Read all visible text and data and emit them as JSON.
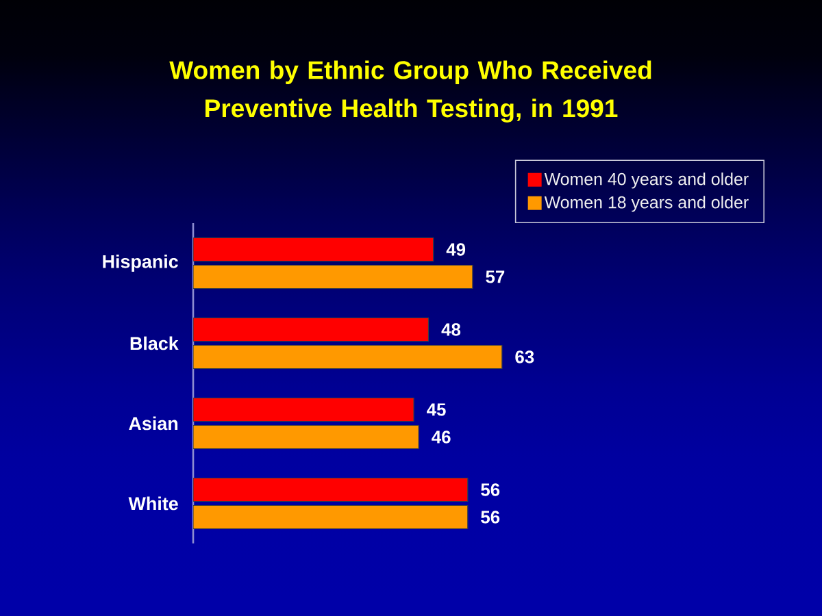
{
  "chart_data": {
    "type": "bar",
    "orientation": "horizontal",
    "title": "Women by Ethnic Group Who Received Preventive Health Testing, in 1991",
    "categories": [
      "Hispanic",
      "Black",
      "Asian",
      "White"
    ],
    "series": [
      {
        "name": "Women 40 years and older",
        "color": "#ff0000",
        "values": [
          49,
          48,
          45,
          56
        ]
      },
      {
        "name": "Women 18 years and older",
        "color": "#ff9900",
        "values": [
          57,
          63,
          46,
          56
        ]
      }
    ],
    "data_labels": true,
    "legend": "top right"
  }
}
